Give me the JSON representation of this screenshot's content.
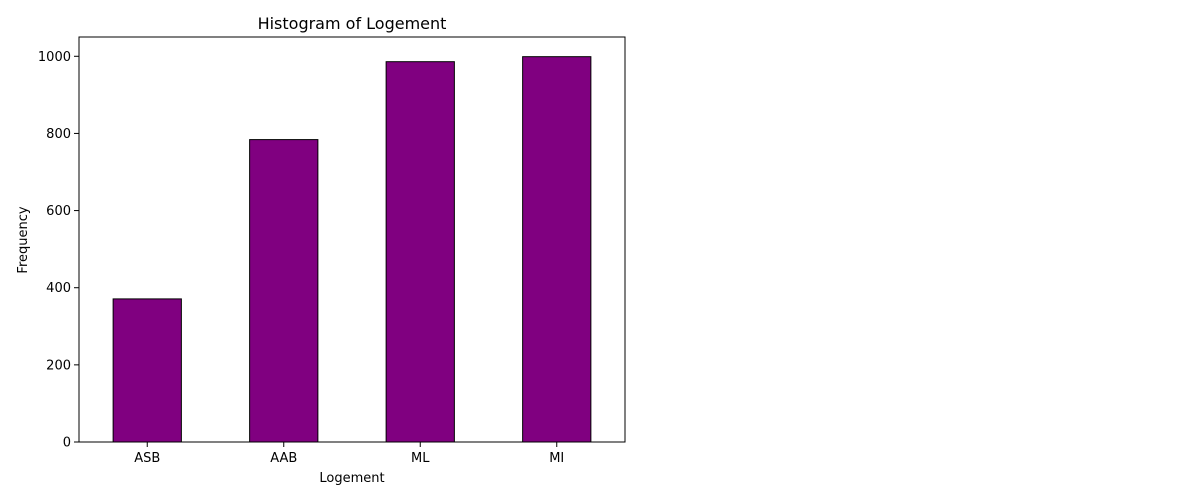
{
  "chart_data": {
    "type": "bar",
    "title": "Histogram of Logement",
    "xlabel": "Logement",
    "ylabel": "Frequency",
    "categories": [
      "ASB",
      "AAB",
      "ML",
      "MI"
    ],
    "values": [
      371,
      784,
      986,
      999
    ],
    "ylim": [
      0,
      1050
    ],
    "yticks": [
      0,
      200,
      400,
      600,
      800,
      1000
    ],
    "bar_color": "#800080",
    "edge_color": "#000000",
    "grid": false,
    "legend": "none"
  }
}
